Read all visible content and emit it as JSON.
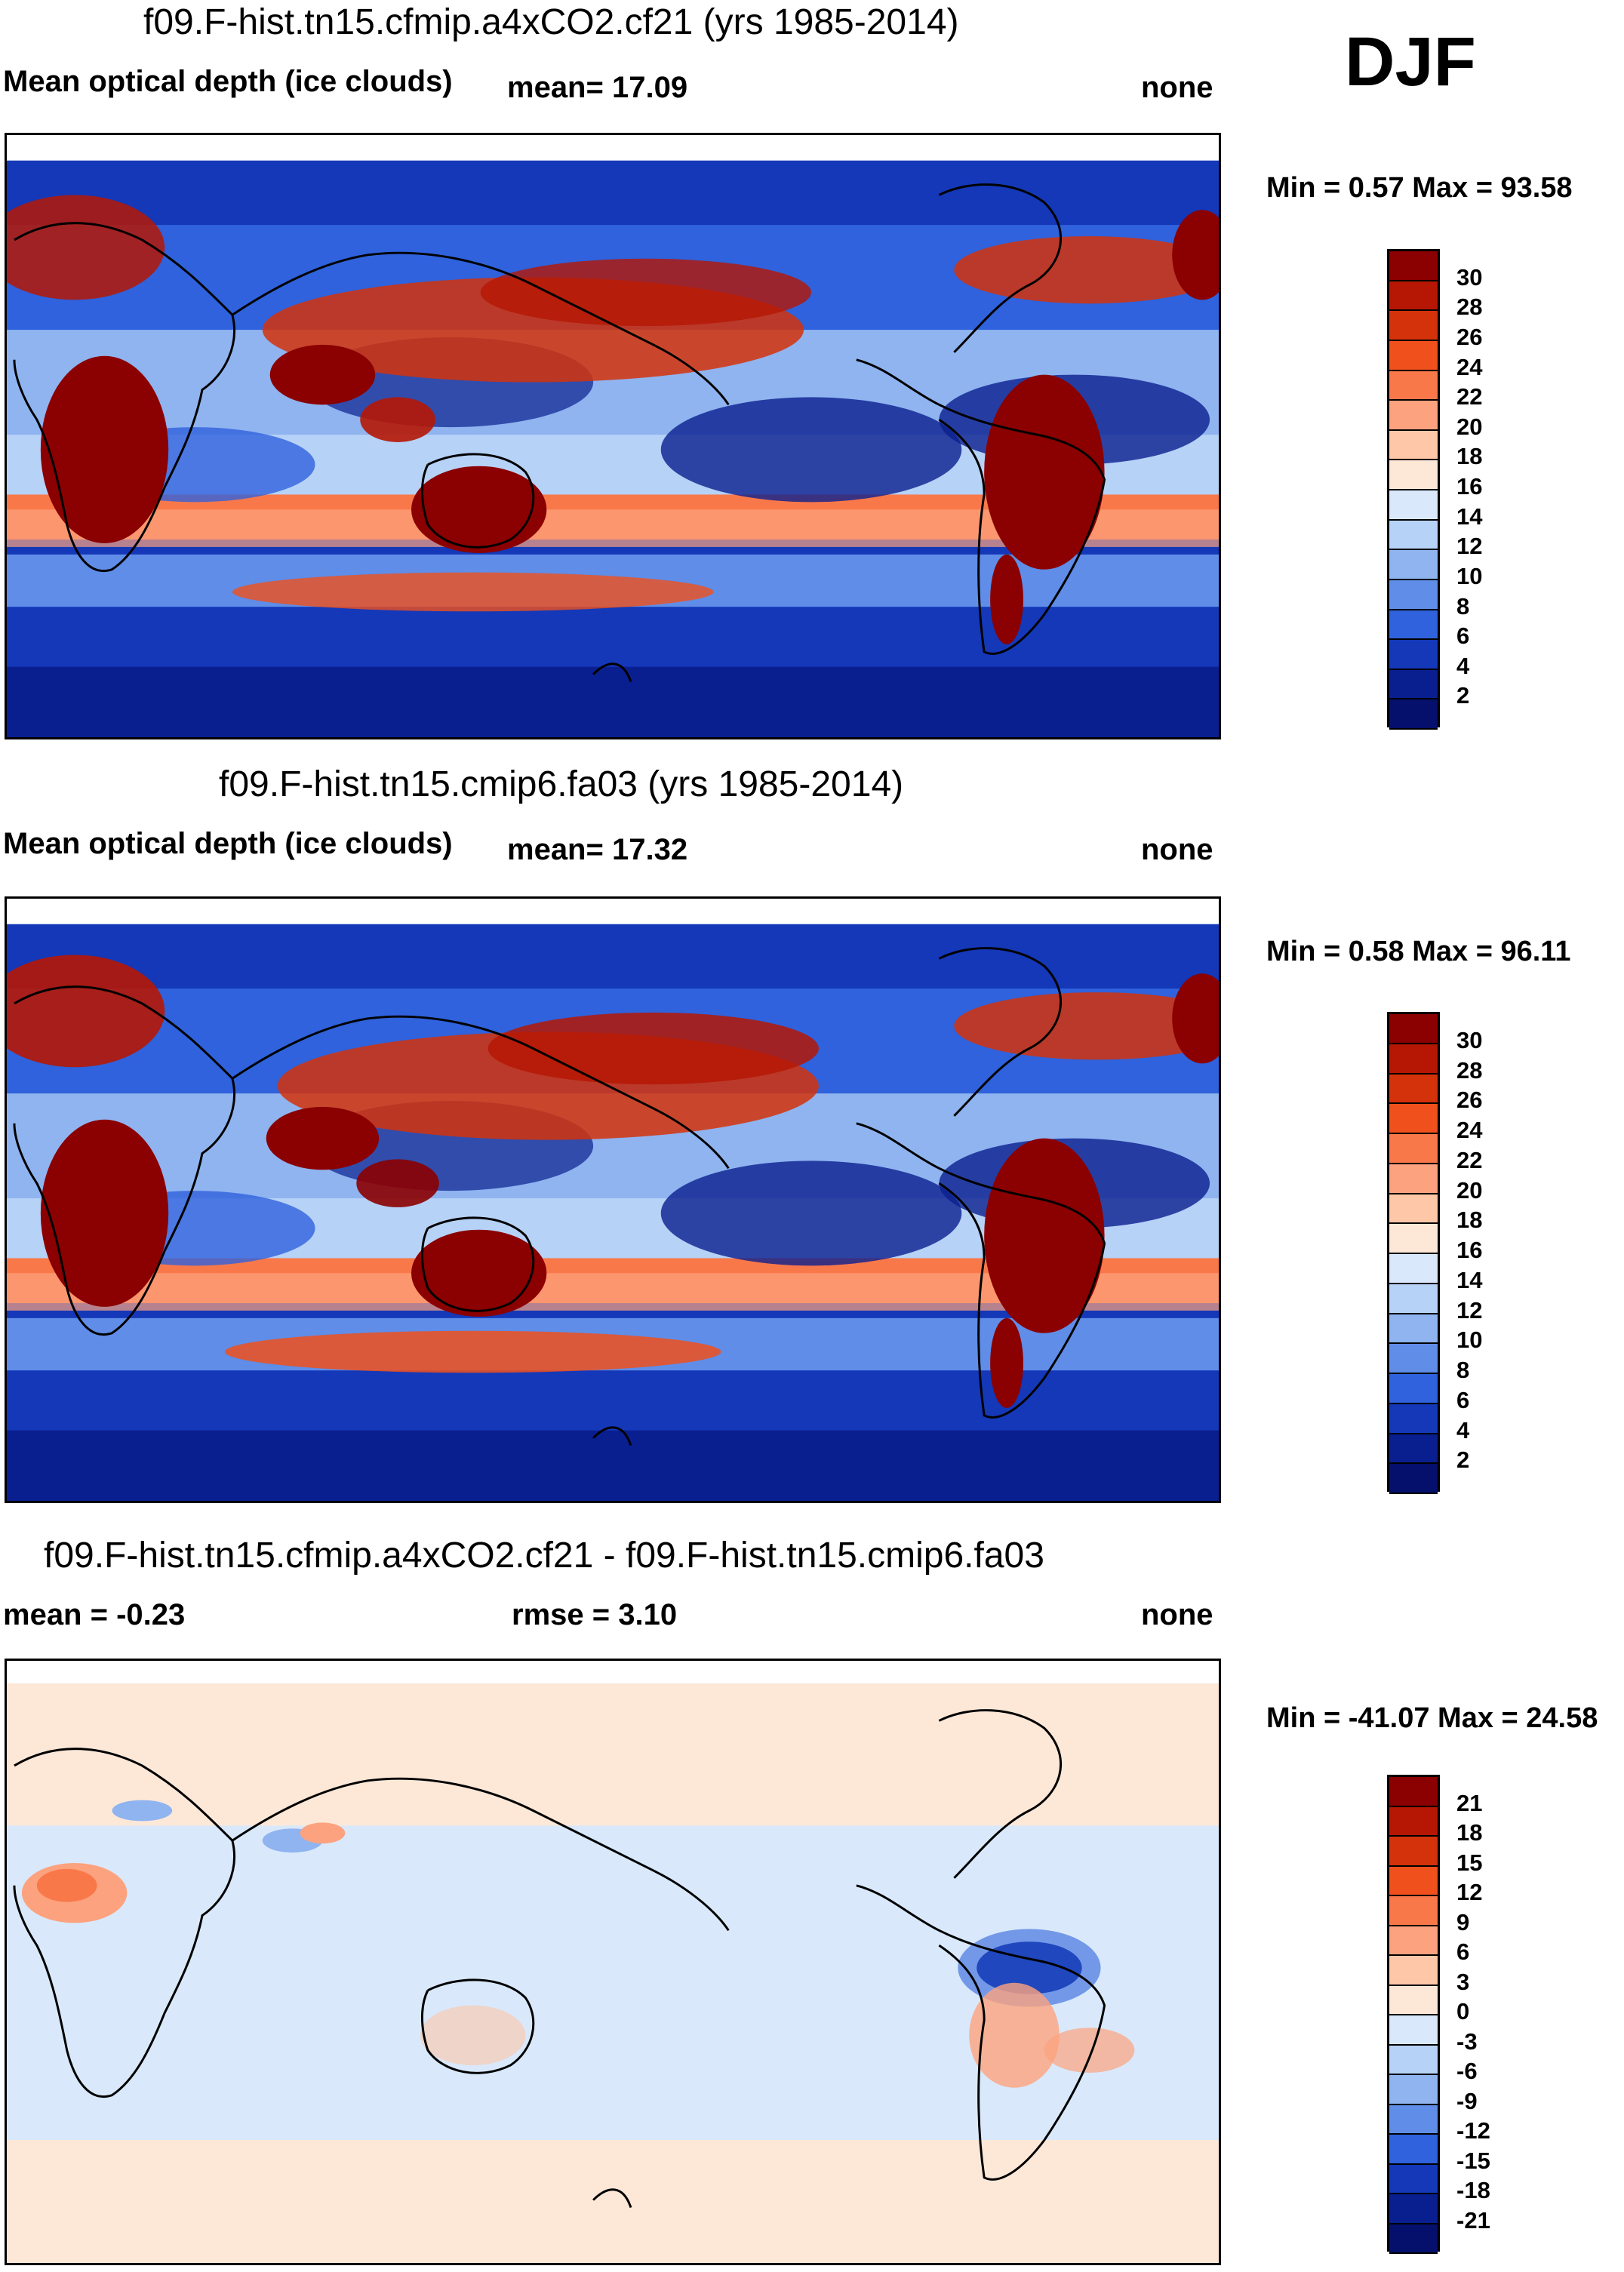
{
  "season": "DJF",
  "panels": [
    {
      "id": "panel1",
      "title": "f09.F-hist.tn15.cfmip.a4xCO2.cf21 (yrs 1985-2014)",
      "variable": "Mean optical depth (ice clouds)",
      "mean_label": "mean=  17.09",
      "units": "none",
      "minmax": "Min =   0.57 Max =  93.58",
      "colorbar_labels": [
        "30",
        "28",
        "26",
        "24",
        "22",
        "20",
        "18",
        "16",
        "14",
        "12",
        "10",
        "8",
        "6",
        "4",
        "2"
      ],
      "colorbar_colors": [
        "#8b0000",
        "#b51704",
        "#d4320b",
        "#f0501b",
        "#f9784a",
        "#fca27e",
        "#fdc7a8",
        "#fde8d8",
        "#d9e9fb",
        "#b7d2f7",
        "#8fb4f0",
        "#5f8de8",
        "#2f62dc",
        "#1438b8",
        "#0a1f8f",
        "#04106b"
      ]
    },
    {
      "id": "panel2",
      "title": "f09.F-hist.tn15.cmip6.fa03 (yrs 1985-2014)",
      "variable": "Mean optical depth (ice clouds)",
      "mean_label": "mean=  17.32",
      "units": "none",
      "minmax": "Min =   0.58 Max =  96.11",
      "colorbar_labels": [
        "30",
        "28",
        "26",
        "24",
        "22",
        "20",
        "18",
        "16",
        "14",
        "12",
        "10",
        "8",
        "6",
        "4",
        "2"
      ],
      "colorbar_colors": [
        "#8b0000",
        "#b51704",
        "#d4320b",
        "#f0501b",
        "#f9784a",
        "#fca27e",
        "#fdc7a8",
        "#fde8d8",
        "#d9e9fb",
        "#b7d2f7",
        "#8fb4f0",
        "#5f8de8",
        "#2f62dc",
        "#1438b8",
        "#0a1f8f",
        "#04106b"
      ]
    },
    {
      "id": "panel3",
      "title": "f09.F-hist.tn15.cfmip.a4xCO2.cf21 - f09.F-hist.tn15.cmip6.fa03",
      "mean_label": "mean =  -0.23",
      "rmse_label": "rmse =    3.10",
      "units": "none",
      "minmax": "Min = -41.07 Max =  24.58",
      "colorbar_labels": [
        "21",
        "18",
        "15",
        "12",
        "9",
        "6",
        "3",
        "0",
        "-3",
        "-6",
        "-9",
        "-12",
        "-15",
        "-18",
        "-21"
      ],
      "colorbar_colors": [
        "#8b0000",
        "#b51704",
        "#d4320b",
        "#f0501b",
        "#f9784a",
        "#fca27e",
        "#fdc7a8",
        "#fde8d8",
        "#d9e9fb",
        "#b7d2f7",
        "#8fb4f0",
        "#5f8de8",
        "#2f62dc",
        "#1438b8",
        "#0a1f8f",
        "#04106b"
      ]
    }
  ]
}
